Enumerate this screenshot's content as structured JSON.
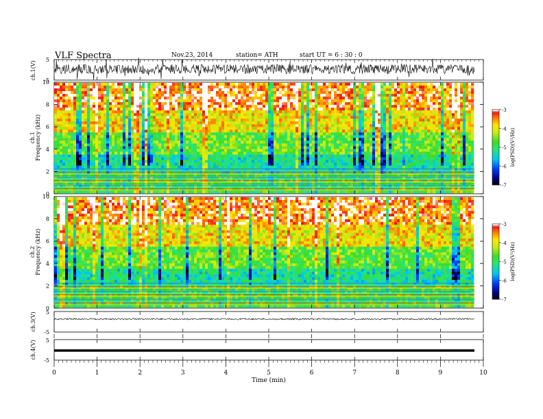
{
  "header": {
    "title": "VLF  Spectra",
    "date": "Nov.23, 2014",
    "station": "station= ATH",
    "start": "start  UT  =   6  : 30 : 0"
  },
  "chart_data": [
    {
      "id": "ch1_waveform",
      "type": "line",
      "ylabel": "ch.1(V)",
      "ylim": [
        -5,
        5
      ],
      "yticks": [
        "5",
        "-5"
      ],
      "trace": "dense noise waveform around 0 V, amplitude about +/-1.5 V, spanning 0 to 9.8 min"
    },
    {
      "id": "ch1_spectrogram",
      "type": "heatmap",
      "ylabel": "ch.1\nFrequency  (kHz)",
      "ylim": [
        0,
        10
      ],
      "yticks": [
        "0",
        "2",
        "4",
        "6",
        "8",
        "10"
      ],
      "colorbar": {
        "label": "log(PSD)(V²/Hz)",
        "range": [
          -7,
          -3
        ],
        "ticks": [
          "-3",
          "-4",
          "-5",
          "-6",
          "-7"
        ]
      }
    },
    {
      "id": "ch2_spectrogram",
      "type": "heatmap",
      "ylabel": "ch.2\nFrequency  (kHz)",
      "ylim": [
        0,
        10
      ],
      "yticks": [
        "0",
        "2",
        "4",
        "6",
        "8",
        "10"
      ],
      "colorbar": {
        "label": "log(PSD)(V²/Hz)",
        "range": [
          -7,
          -3
        ],
        "ticks": [
          "-3",
          "-4",
          "-5",
          "-6",
          "-7"
        ]
      }
    },
    {
      "id": "ch3_waveform",
      "type": "line",
      "ylabel": "ch.3(V)",
      "ylim": [
        -5,
        5
      ],
      "yticks": [
        "5",
        "-5"
      ],
      "trace": "near 0 V small-amplitude noise"
    },
    {
      "id": "ch4_waveform",
      "type": "line",
      "ylabel": "ch.4(V)",
      "ylim": [
        -5,
        5
      ],
      "yticks": [
        "5",
        "-5"
      ],
      "trace": "flat thick line at about 0 V"
    }
  ],
  "x_axis": {
    "label": "Time  (min)",
    "xlim": [
      0,
      10
    ],
    "data_end": 9.8,
    "ticks": [
      "0",
      "1",
      "2",
      "3",
      "4",
      "5",
      "6",
      "7",
      "8",
      "9",
      "10"
    ]
  }
}
